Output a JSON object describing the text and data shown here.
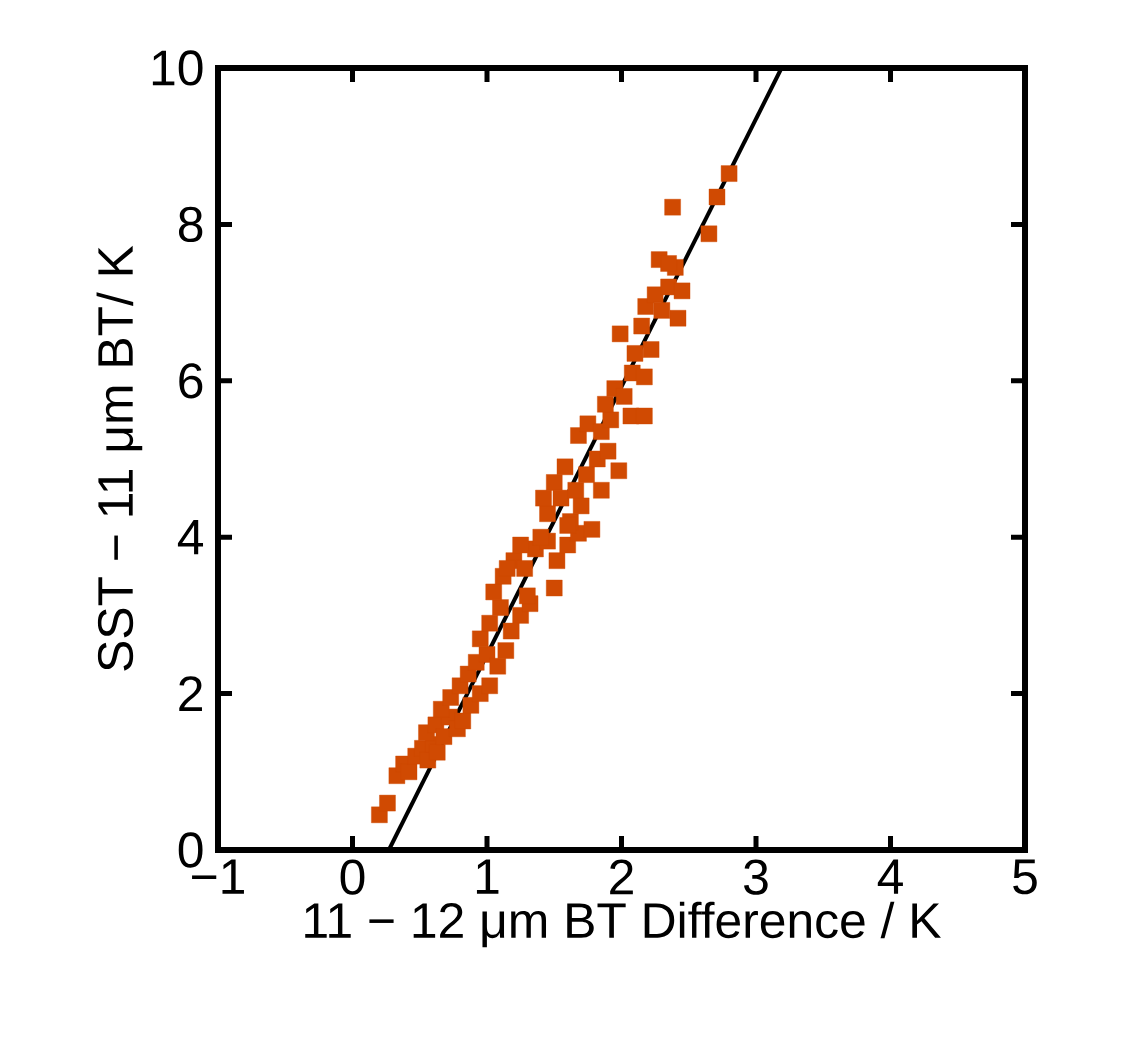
{
  "chart_data": {
    "type": "scatter",
    "xlabel": "11 − 12 μm BT Difference / K",
    "ylabel": "SST − 11 μm BT/ K",
    "xlim": [
      -1,
      5
    ],
    "ylim": [
      0,
      10
    ],
    "xticks": [
      {
        "value": -1,
        "label": "−1"
      },
      0,
      1,
      2,
      3,
      4,
      5
    ],
    "yticks": [
      0,
      2,
      4,
      6,
      8,
      10
    ],
    "series": [
      {
        "marker": "square",
        "color": "#d04a02",
        "x": [
          0.2,
          0.26,
          0.33,
          0.38,
          0.42,
          0.47,
          0.52,
          0.56,
          0.6,
          0.63,
          0.55,
          0.62,
          0.68,
          0.72,
          0.78,
          0.82,
          0.66,
          0.73,
          0.8,
          0.88,
          0.95,
          1.02,
          0.86,
          0.92,
          1.0,
          1.08,
          1.14,
          0.95,
          1.02,
          1.1,
          1.18,
          1.25,
          1.32,
          1.05,
          1.12,
          1.2,
          1.28,
          1.36,
          1.45,
          1.52,
          1.6,
          1.68,
          1.5,
          1.15,
          1.25,
          1.4,
          1.45,
          1.55,
          1.62,
          1.7,
          1.78,
          1.85,
          1.42,
          1.5,
          1.58,
          1.66,
          1.74,
          1.82,
          1.9,
          1.98,
          1.68,
          1.75,
          1.85,
          1.92,
          1.88,
          1.95,
          2.02,
          2.08,
          2.07,
          2.17,
          1.99,
          2.1,
          2.15,
          2.22,
          2.17,
          2.18,
          2.25,
          2.3,
          2.35,
          2.45,
          2.42,
          2.28,
          2.4,
          2.35,
          2.38,
          2.65,
          2.71,
          2.8,
          1.3,
          1.6
        ],
        "values": [
          0.45,
          0.6,
          0.95,
          1.1,
          1.0,
          1.2,
          1.3,
          1.15,
          1.35,
          1.25,
          1.5,
          1.6,
          1.45,
          1.7,
          1.55,
          1.65,
          1.8,
          1.95,
          2.1,
          1.85,
          2.0,
          2.1,
          2.25,
          2.4,
          2.5,
          2.35,
          2.55,
          2.7,
          2.9,
          3.1,
          2.8,
          3.0,
          3.15,
          3.3,
          3.5,
          3.7,
          3.6,
          3.85,
          3.95,
          3.7,
          3.9,
          4.05,
          3.35,
          3.6,
          3.9,
          4.0,
          4.3,
          4.5,
          4.2,
          4.4,
          4.1,
          4.6,
          4.5,
          4.7,
          4.9,
          4.6,
          4.8,
          5.0,
          5.1,
          4.85,
          5.3,
          5.45,
          5.35,
          5.5,
          5.7,
          5.9,
          5.8,
          6.1,
          5.55,
          5.55,
          6.6,
          6.35,
          6.7,
          6.4,
          6.05,
          6.95,
          7.1,
          6.9,
          7.2,
          7.15,
          6.8,
          7.55,
          7.45,
          7.5,
          8.22,
          7.88,
          8.35,
          8.65,
          3.25,
          4.15
        ]
      },
      {
        "type": "line",
        "color": "#000000",
        "x": [
          0.27,
          3.19
        ],
        "values": [
          0,
          10
        ]
      }
    ]
  }
}
